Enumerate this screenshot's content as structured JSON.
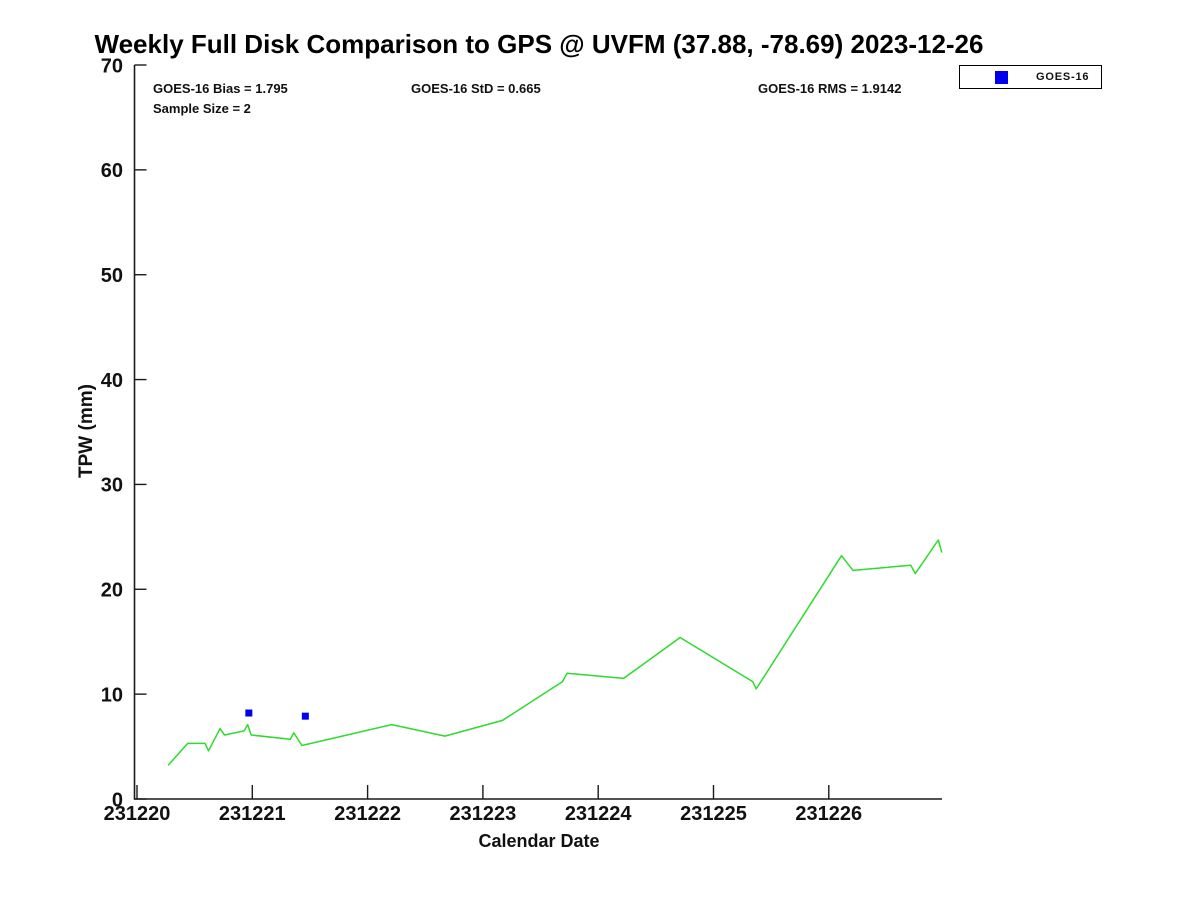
{
  "title": "Weekly Full Disk Comparison to GPS @ UVFM (37.88, -78.69) 2023-12-26",
  "annotations": {
    "bias": "GOES-16 Bias = 1.795",
    "std": "GOES-16 StD = 0.665",
    "rms": "GOES-16 RMS = 1.9142",
    "sample_size": "Sample Size = 2"
  },
  "legend": {
    "label": "GOES-16",
    "marker_color": "#0000ee",
    "position": "top-right"
  },
  "axes": {
    "x": {
      "label": "Calendar Date"
    },
    "y": {
      "label": "TPW (mm)"
    }
  },
  "colors": {
    "line": "#2cdb2c",
    "marker": "#0000ee",
    "axis": "#1a1a1a",
    "text": "#111111"
  },
  "chart_data": {
    "type": "line",
    "title": "Weekly Full Disk Comparison to GPS @ UVFM (37.88, -78.69) 2023-12-26",
    "xlabel": "Calendar Date",
    "ylabel": "TPW (mm)",
    "x_unit": "days since 231220 (calendar date YYMMDD)",
    "x_tick_labels": [
      "231220",
      "231221",
      "231222",
      "231223",
      "231224",
      "231225",
      "231226"
    ],
    "y_ticks": [
      0,
      10,
      20,
      30,
      40,
      50,
      60,
      70
    ],
    "xlim_days": [
      0,
      7.02
    ],
    "ylim": [
      0,
      70
    ],
    "grid": false,
    "legend_entries": [
      "GOES-16"
    ],
    "series": [
      {
        "name": "TPW time series",
        "type": "line",
        "color": "#2cdb2c",
        "in_legend": false,
        "points": [
          [
            0.27,
            3.2
          ],
          [
            0.44,
            5.3
          ],
          [
            0.59,
            5.3
          ],
          [
            0.62,
            4.6
          ],
          [
            0.72,
            6.7
          ],
          [
            0.76,
            6.1
          ],
          [
            0.93,
            6.5
          ],
          [
            0.96,
            7.1
          ],
          [
            0.99,
            6.1
          ],
          [
            1.33,
            5.7
          ],
          [
            1.36,
            6.3
          ],
          [
            1.43,
            5.1
          ],
          [
            2.21,
            7.1
          ],
          [
            2.67,
            6.0
          ],
          [
            3.17,
            7.5
          ],
          [
            3.69,
            11.2
          ],
          [
            3.73,
            12.0
          ],
          [
            4.22,
            11.5
          ],
          [
            4.71,
            15.4
          ],
          [
            5.34,
            11.2
          ],
          [
            5.37,
            10.5
          ],
          [
            6.11,
            23.2
          ],
          [
            6.21,
            21.8
          ],
          [
            6.71,
            22.3
          ],
          [
            6.75,
            21.5
          ],
          [
            6.95,
            24.7
          ],
          [
            6.98,
            23.5
          ]
        ]
      },
      {
        "name": "GOES-16",
        "type": "scatter",
        "marker": "square",
        "color": "#0000ee",
        "in_legend": true,
        "points": [
          [
            0.97,
            8.2
          ],
          [
            1.46,
            7.9
          ]
        ]
      }
    ]
  }
}
